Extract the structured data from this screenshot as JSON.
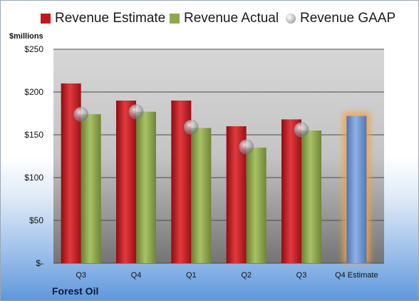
{
  "legend": {
    "estimate": "Revenue Estimate",
    "actual": "Revenue Actual",
    "gaap": "Revenue GAAP"
  },
  "unit_label": "$millions",
  "company": "Forest Oil",
  "colors": {
    "estimate": "#c0171d",
    "actual": "#8fa84f",
    "gaap": "#b8b8c0",
    "forecast": "#6f95d0",
    "forecast_glow": "#f5a142",
    "plot_bg_top": "#d9d9d9",
    "plot_bg_bottom": "#7a7a7a"
  },
  "chart_data": {
    "type": "bar",
    "categories": [
      "Q3",
      "Q4",
      "Q1",
      "Q2",
      "Q3",
      "Q4 Estimate"
    ],
    "series": [
      {
        "name": "Revenue Estimate",
        "values": [
          210,
          190,
          190,
          160,
          168,
          null
        ]
      },
      {
        "name": "Revenue Actual",
        "values": [
          174,
          177,
          158,
          135,
          155,
          null
        ]
      },
      {
        "name": "Revenue GAAP",
        "values": [
          174,
          177,
          159,
          136,
          156,
          null
        ]
      }
    ],
    "forecast": {
      "category": "Q4 Estimate",
      "value": 172
    },
    "yticks": [
      "$-",
      "$50",
      "$100",
      "$150",
      "$200",
      "$250"
    ],
    "ylim": [
      0,
      250
    ],
    "grid": true,
    "legend_position": "top"
  }
}
